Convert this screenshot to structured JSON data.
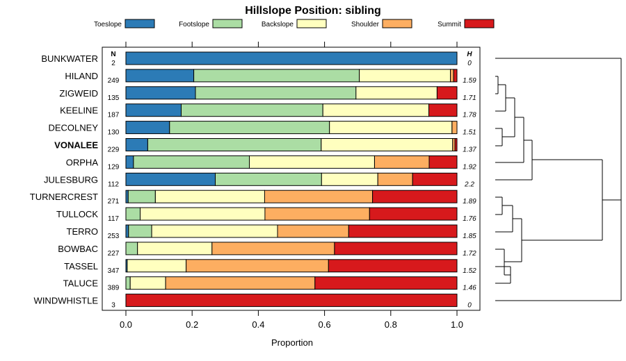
{
  "chart_data": {
    "type": "bar",
    "stacked": true,
    "orientation": "horizontal",
    "title": "Hillslope Position: sibling",
    "xlabel": "Proportion",
    "xlim": [
      0,
      1
    ],
    "xticks": [
      "0.0",
      "0.2",
      "0.4",
      "0.6",
      "0.8",
      "1.0"
    ],
    "n_header": "N",
    "h_header": "H",
    "legend": {
      "placement": "top",
      "entries": [
        {
          "name": "Toeslope",
          "color": "#2C7BB6"
        },
        {
          "name": "Footslope",
          "color": "#ABDDA4"
        },
        {
          "name": "Backslope",
          "color": "#FFFFBF"
        },
        {
          "name": "Shoulder",
          "color": "#FDAE61"
        },
        {
          "name": "Summit",
          "color": "#D7191C"
        }
      ]
    },
    "categories": [
      {
        "name": "BUNKWATER",
        "n": "2",
        "h": "0",
        "bold": false,
        "values": [
          1.0,
          0,
          0,
          0,
          0
        ]
      },
      {
        "name": "HILAND",
        "n": "249",
        "h": "1.59",
        "bold": false,
        "values": [
          0.205,
          0.5,
          0.275,
          0.01,
          0.01
        ]
      },
      {
        "name": "ZIGWEID",
        "n": "135",
        "h": "1.71",
        "bold": false,
        "values": [
          0.21,
          0.485,
          0.245,
          0,
          0.06
        ]
      },
      {
        "name": "KEELINE",
        "n": "187",
        "h": "1.78",
        "bold": false,
        "values": [
          0.167,
          0.428,
          0.32,
          0,
          0.085
        ]
      },
      {
        "name": "DECOLNEY",
        "n": "130",
        "h": "1.51",
        "bold": false,
        "values": [
          0.132,
          0.483,
          0.37,
          0.015,
          0
        ]
      },
      {
        "name": "VONALEE",
        "n": "229",
        "h": "1.37",
        "bold": true,
        "values": [
          0.066,
          0.524,
          0.397,
          0.007,
          0.006
        ]
      },
      {
        "name": "ORPHA",
        "n": "129",
        "h": "1.92",
        "bold": false,
        "values": [
          0.023,
          0.35,
          0.378,
          0.165,
          0.084
        ]
      },
      {
        "name": "JULESBURG",
        "n": "112",
        "h": "2.2",
        "bold": false,
        "values": [
          0.27,
          0.321,
          0.17,
          0.105,
          0.134
        ]
      },
      {
        "name": "TURNERCREST",
        "n": "271",
        "h": "1.89",
        "bold": false,
        "values": [
          0.007,
          0.082,
          0.33,
          0.326,
          0.255
        ]
      },
      {
        "name": "TULLOCK",
        "n": "117",
        "h": "1.76",
        "bold": false,
        "values": [
          0,
          0.043,
          0.377,
          0.316,
          0.264
        ]
      },
      {
        "name": "TERRO",
        "n": "253",
        "h": "1.85",
        "bold": false,
        "values": [
          0.008,
          0.07,
          0.38,
          0.215,
          0.327
        ]
      },
      {
        "name": "BOWBAC",
        "n": "227",
        "h": "1.72",
        "bold": false,
        "values": [
          0,
          0.035,
          0.225,
          0.37,
          0.37
        ]
      },
      {
        "name": "TASSEL",
        "n": "347",
        "h": "1.52",
        "bold": false,
        "values": [
          0.004,
          0,
          0.178,
          0.43,
          0.388
        ]
      },
      {
        "name": "TALUCE",
        "n": "389",
        "h": "1.46",
        "bold": false,
        "values": [
          0,
          0.013,
          0.107,
          0.451,
          0.429
        ]
      },
      {
        "name": "WINDWHISTLE",
        "n": "3",
        "h": "0",
        "bold": false,
        "values": [
          0,
          0,
          0,
          0,
          1.0
        ]
      }
    ],
    "grid": false
  }
}
